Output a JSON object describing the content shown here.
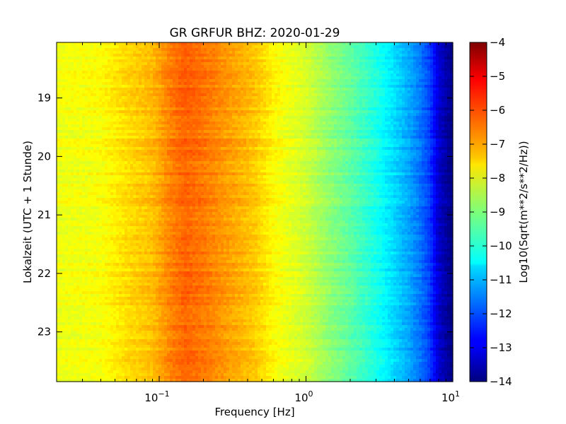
{
  "chart_data": {
    "type": "heatmap",
    "title": "GR GRFUR BHZ: 2020-01-29",
    "xlabel": "Frequency [Hz]",
    "ylabel": "Lokalzeit (UTC + 1 Stunde)",
    "x_scale": "log",
    "xlim": [
      0.02,
      10
    ],
    "ylim": [
      23.85,
      18.05
    ],
    "x_ticks": [
      {
        "value": 0.1,
        "base": "10",
        "exp": "−1"
      },
      {
        "value": 1,
        "base": "10",
        "exp": "0"
      },
      {
        "value": 10,
        "base": "10",
        "exp": "1"
      }
    ],
    "y_ticks": [
      "19",
      "20",
      "21",
      "22",
      "23"
    ],
    "colorbar": {
      "label": "Log10(Sqrt(m**2/s**2/Hz))",
      "range": [
        -14,
        -4
      ],
      "colormap": "jet",
      "ticks": [
        "−4",
        "−5",
        "−6",
        "−7",
        "−8",
        "−9",
        "−10",
        "−11",
        "−12",
        "−13",
        "−14"
      ]
    },
    "spectrum_profile": [
      {
        "freq": 0.02,
        "value": -7.9
      },
      {
        "freq": 0.04,
        "value": -7.8
      },
      {
        "freq": 0.06,
        "value": -7.4
      },
      {
        "freq": 0.09,
        "value": -7.1
      },
      {
        "freq": 0.12,
        "value": -6.5
      },
      {
        "freq": 0.15,
        "value": -6.2
      },
      {
        "freq": 0.2,
        "value": -6.4
      },
      {
        "freq": 0.3,
        "value": -6.8
      },
      {
        "freq": 0.45,
        "value": -7.2
      },
      {
        "freq": 0.6,
        "value": -7.7
      },
      {
        "freq": 0.8,
        "value": -8.0
      },
      {
        "freq": 1.0,
        "value": -8.2
      },
      {
        "freq": 1.5,
        "value": -8.9
      },
      {
        "freq": 2.0,
        "value": -9.3
      },
      {
        "freq": 3.0,
        "value": -10.0
      },
      {
        "freq": 4.0,
        "value": -10.6
      },
      {
        "freq": 5.0,
        "value": -11.1
      },
      {
        "freq": 6.0,
        "value": -11.6
      },
      {
        "freq": 7.0,
        "value": -12.2
      },
      {
        "freq": 8.0,
        "value": -13.2
      },
      {
        "freq": 10.0,
        "value": -14.0
      }
    ]
  }
}
